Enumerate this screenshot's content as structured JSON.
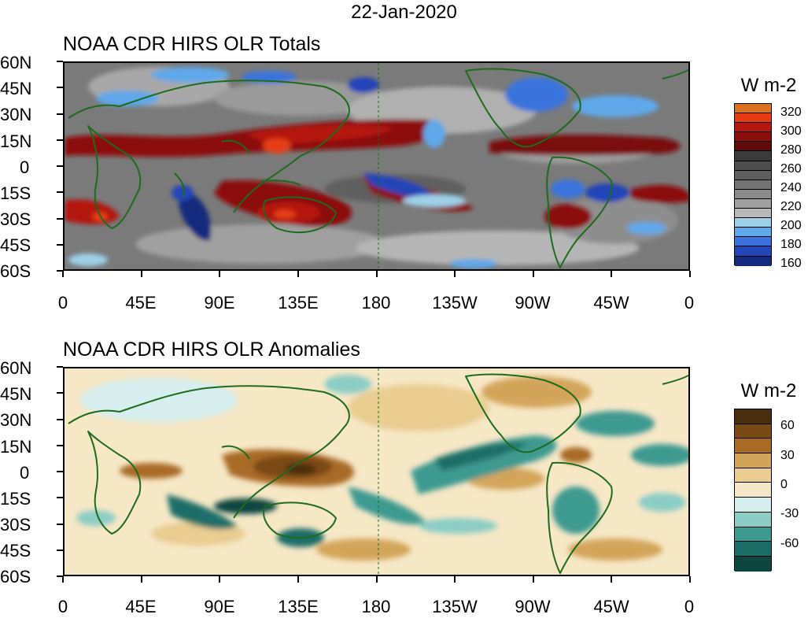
{
  "date": "22-Jan-2020",
  "panels": [
    {
      "title": "NOAA CDR HIRS OLR Totals",
      "units": "W m-2",
      "colorbar": {
        "colors": [
          "#d9711f",
          "#e53c17",
          "#b3170f",
          "#8c0e0c",
          "#5e0a09",
          "#3a3a3a",
          "#4d4d4d",
          "#5f5f5f",
          "#737373",
          "#8a8a8a",
          "#a0a0a0",
          "#b8b8b8",
          "#9ed0e8",
          "#5fa8ea",
          "#3a73dd",
          "#2245b8",
          "#142b7d"
        ],
        "labels": [
          "320",
          "300",
          "280",
          "260",
          "240",
          "220",
          "200",
          "180",
          "160"
        ]
      }
    },
    {
      "title": "NOAA CDR HIRS OLR Anomalies",
      "units": "W m-2",
      "colorbar": {
        "colors": [
          "#4a2e10",
          "#7a4a16",
          "#a96a26",
          "#d3a55a",
          "#e9cd91",
          "#f6e7c6",
          "#d6efee",
          "#8ccdc5",
          "#3c9a91",
          "#1a6e67",
          "#0c463f"
        ],
        "labels": [
          "60",
          "30",
          "0",
          "-30",
          "-60"
        ]
      }
    }
  ],
  "lat_labels": [
    "60N",
    "45N",
    "30N",
    "15N",
    "0",
    "15S",
    "30S",
    "45S",
    "60S"
  ],
  "lon_labels": [
    "0",
    "45E",
    "90E",
    "135E",
    "180",
    "135W",
    "90W",
    "45W",
    "0"
  ]
}
